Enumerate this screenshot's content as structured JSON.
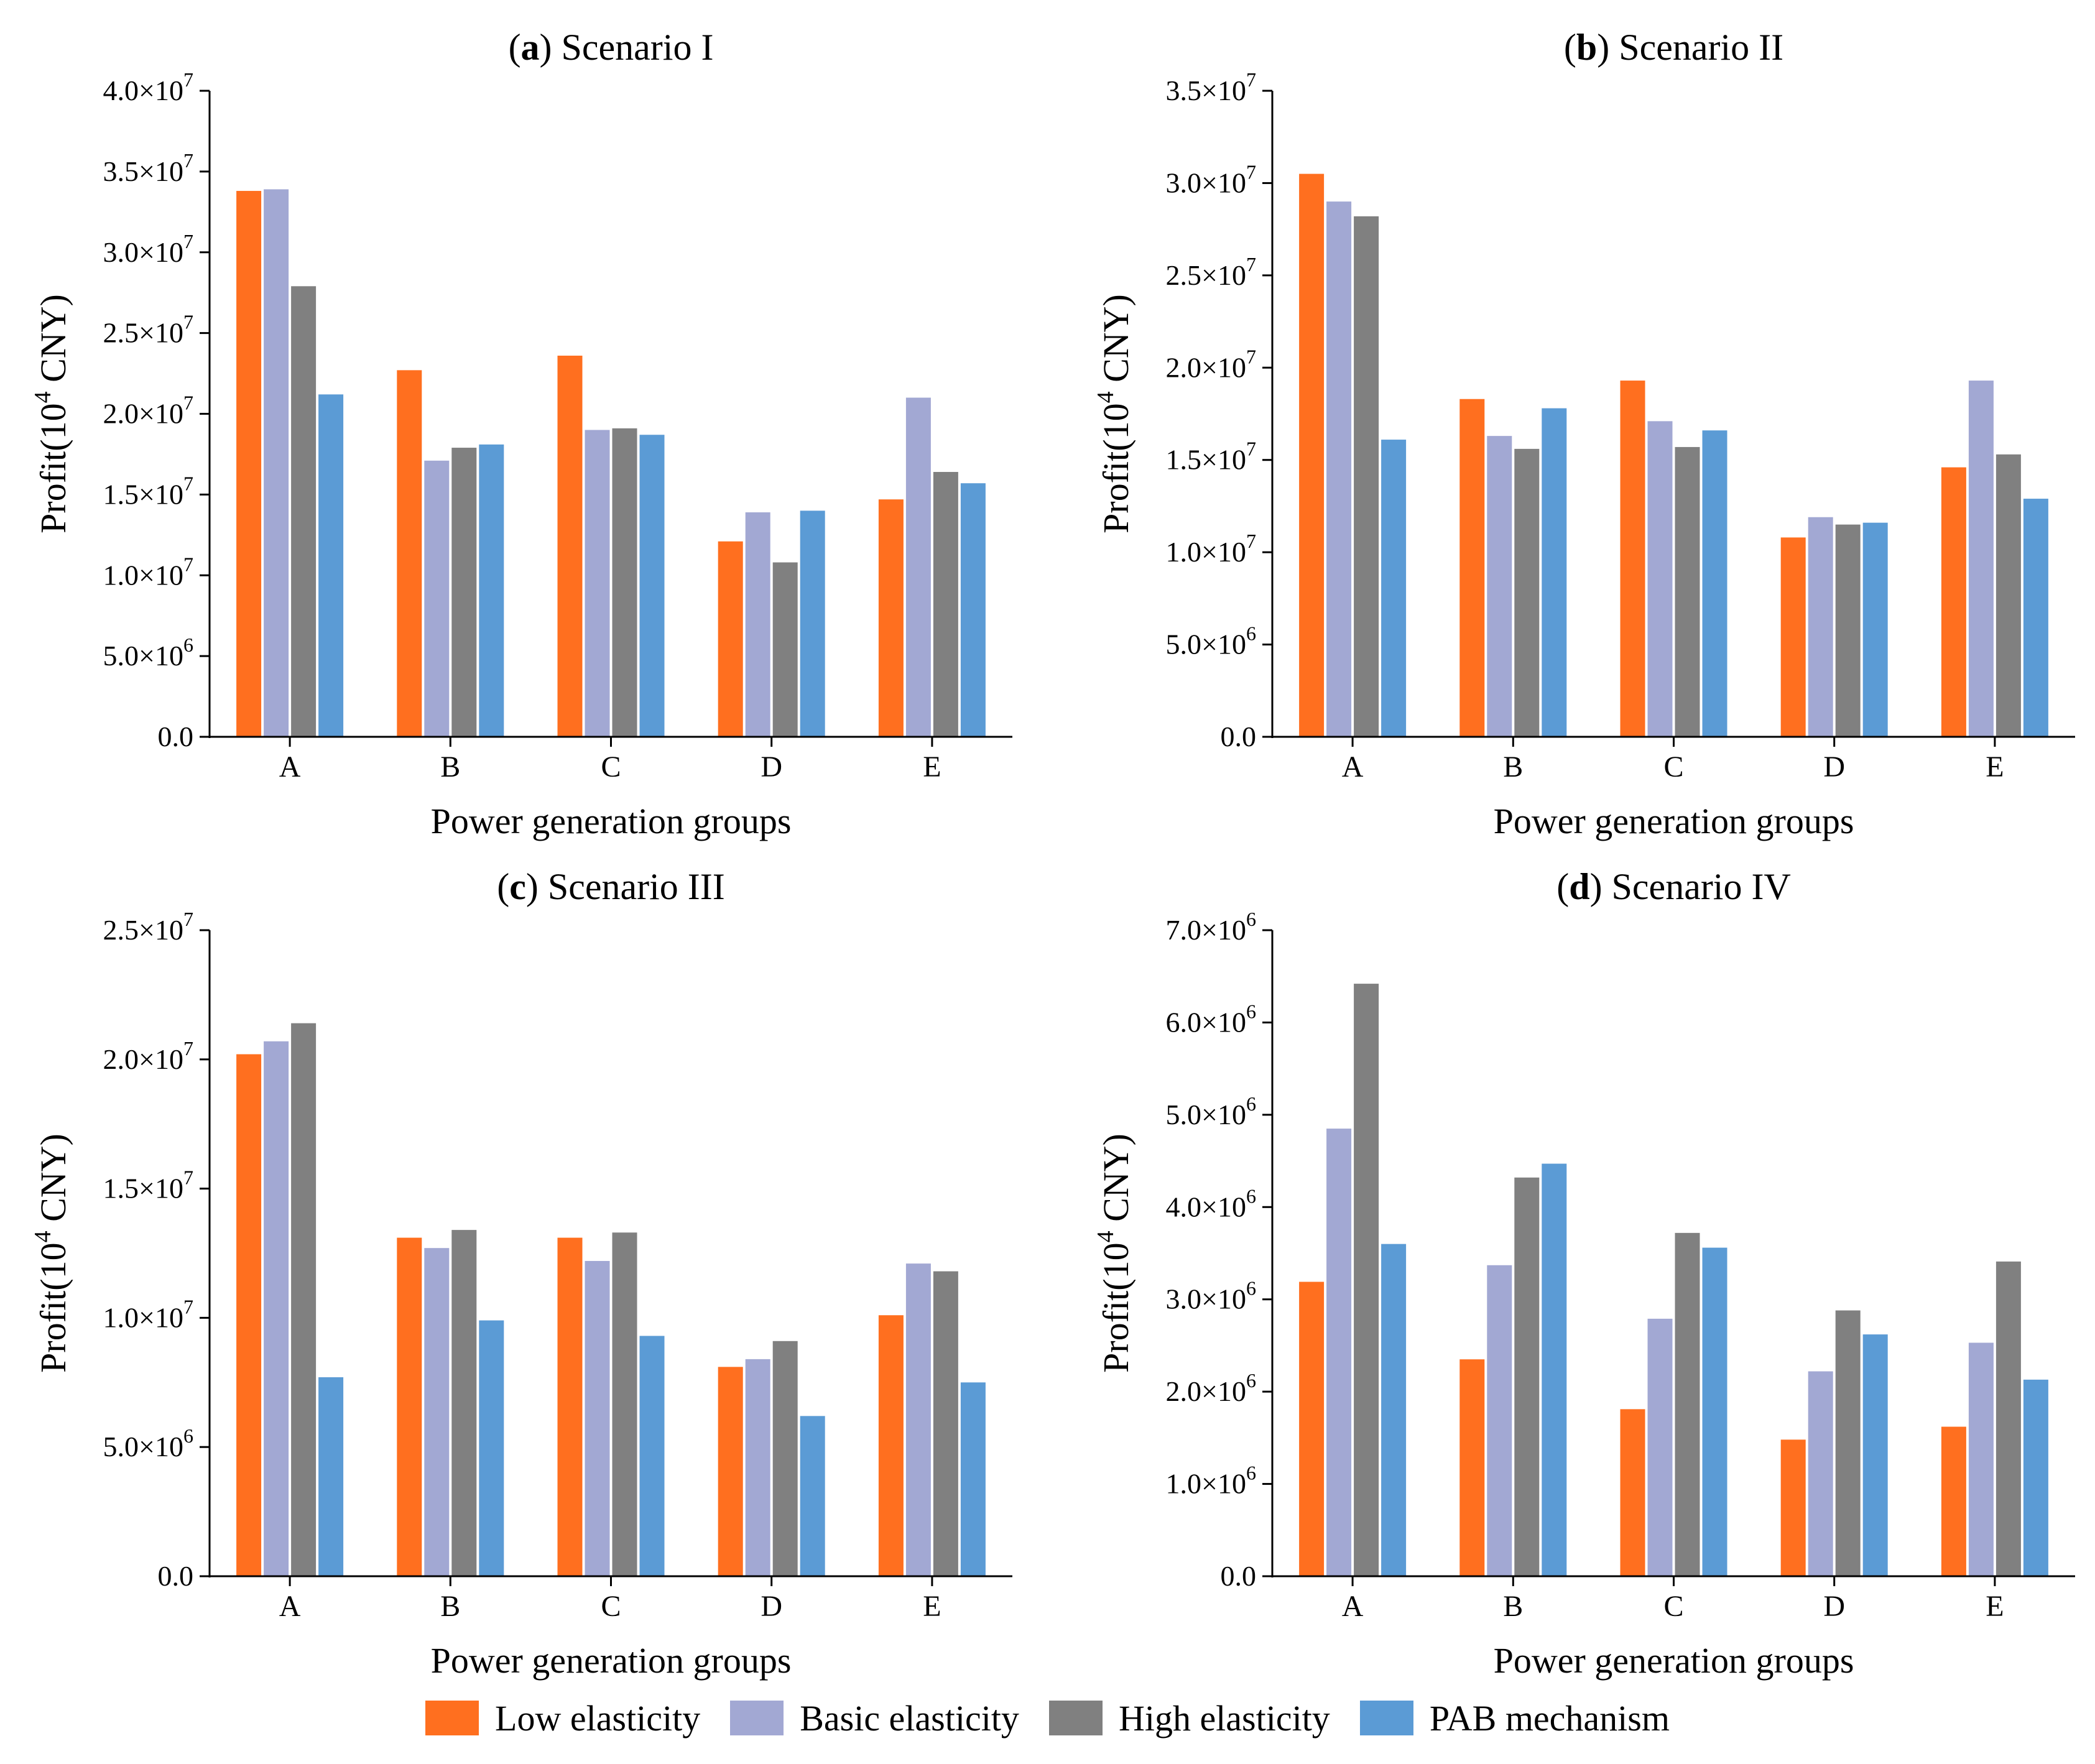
{
  "legend": {
    "series": [
      {
        "name": "Low elasticity",
        "color": "#FF6F1F"
      },
      {
        "name": "Basic elasticity",
        "color": "#A2A8D3"
      },
      {
        "name": "High elasticity",
        "color": "#808080"
      },
      {
        "name": "PAB mechanism",
        "color": "#5B9BD5"
      }
    ]
  },
  "chart_data": [
    {
      "type": "bar",
      "panel_letter": "a",
      "title": "Scenario I",
      "xlabel": "Power generation groups",
      "ylabel": "Profit(10^4 CNY)",
      "categories": [
        "A",
        "B",
        "C",
        "D",
        "E"
      ],
      "ylim": [
        0,
        40000000
      ],
      "yticks": [
        {
          "value": 0,
          "mant": "0.0",
          "exp": ""
        },
        {
          "value": 5000000,
          "mant": "5.0×10",
          "exp": "6"
        },
        {
          "value": 10000000,
          "mant": "1.0×10",
          "exp": "7"
        },
        {
          "value": 15000000,
          "mant": "1.5×10",
          "exp": "7"
        },
        {
          "value": 20000000,
          "mant": "2.0×10",
          "exp": "7"
        },
        {
          "value": 25000000,
          "mant": "2.5×10",
          "exp": "7"
        },
        {
          "value": 30000000,
          "mant": "3.0×10",
          "exp": "7"
        },
        {
          "value": 35000000,
          "mant": "3.5×10",
          "exp": "7"
        },
        {
          "value": 40000000,
          "mant": "4.0×10",
          "exp": "7"
        }
      ],
      "series": [
        {
          "name": "Low elasticity",
          "values": [
            33800000,
            22700000,
            23600000,
            12100000,
            14700000
          ]
        },
        {
          "name": "Basic elasticity",
          "values": [
            33900000,
            17100000,
            19000000,
            13900000,
            21000000
          ]
        },
        {
          "name": "High elasticity",
          "values": [
            27900000,
            17900000,
            19100000,
            10800000,
            16400000
          ]
        },
        {
          "name": "PAB mechanism",
          "values": [
            21200000,
            18100000,
            18700000,
            14000000,
            15700000
          ]
        }
      ]
    },
    {
      "type": "bar",
      "panel_letter": "b",
      "title": "Scenario II",
      "xlabel": "Power generation groups",
      "ylabel": "Profit(10^4 CNY)",
      "categories": [
        "A",
        "B",
        "C",
        "D",
        "E"
      ],
      "ylim": [
        0,
        35000000
      ],
      "yticks": [
        {
          "value": 0,
          "mant": "0.0",
          "exp": ""
        },
        {
          "value": 5000000,
          "mant": "5.0×10",
          "exp": "6"
        },
        {
          "value": 10000000,
          "mant": "1.0×10",
          "exp": "7"
        },
        {
          "value": 15000000,
          "mant": "1.5×10",
          "exp": "7"
        },
        {
          "value": 20000000,
          "mant": "2.0×10",
          "exp": "7"
        },
        {
          "value": 25000000,
          "mant": "2.5×10",
          "exp": "7"
        },
        {
          "value": 30000000,
          "mant": "3.0×10",
          "exp": "7"
        },
        {
          "value": 35000000,
          "mant": "3.5×10",
          "exp": "7"
        }
      ],
      "series": [
        {
          "name": "Low elasticity",
          "values": [
            30500000,
            18300000,
            19300000,
            10800000,
            14600000
          ]
        },
        {
          "name": "Basic elasticity",
          "values": [
            29000000,
            16300000,
            17100000,
            11900000,
            19300000
          ]
        },
        {
          "name": "High elasticity",
          "values": [
            28200000,
            15600000,
            15700000,
            11500000,
            15300000
          ]
        },
        {
          "name": "PAB mechanism",
          "values": [
            16100000,
            17800000,
            16600000,
            11600000,
            12900000
          ]
        }
      ]
    },
    {
      "type": "bar",
      "panel_letter": "c",
      "title": "Scenario III",
      "xlabel": "Power generation groups",
      "ylabel": "Profit(10^4 CNY)",
      "categories": [
        "A",
        "B",
        "C",
        "D",
        "E"
      ],
      "ylim": [
        0,
        25000000
      ],
      "yticks": [
        {
          "value": 0,
          "mant": "0.0",
          "exp": ""
        },
        {
          "value": 5000000,
          "mant": "5.0×10",
          "exp": "6"
        },
        {
          "value": 10000000,
          "mant": "1.0×10",
          "exp": "7"
        },
        {
          "value": 15000000,
          "mant": "1.5×10",
          "exp": "7"
        },
        {
          "value": 20000000,
          "mant": "2.0×10",
          "exp": "7"
        },
        {
          "value": 25000000,
          "mant": "2.5×10",
          "exp": "7"
        }
      ],
      "series": [
        {
          "name": "Low elasticity",
          "values": [
            20200000,
            13100000,
            13100000,
            8100000,
            10100000
          ]
        },
        {
          "name": "Basic elasticity",
          "values": [
            20700000,
            12700000,
            12200000,
            8400000,
            12100000
          ]
        },
        {
          "name": "High elasticity",
          "values": [
            21400000,
            13400000,
            13300000,
            9100000,
            11800000
          ]
        },
        {
          "name": "PAB mechanism",
          "values": [
            7700000,
            9900000,
            9300000,
            6200000,
            7500000
          ]
        }
      ]
    },
    {
      "type": "bar",
      "panel_letter": "d",
      "title": "Scenario IV",
      "xlabel": "Power generation groups",
      "ylabel": "Profit(10^4 CNY)",
      "categories": [
        "A",
        "B",
        "C",
        "D",
        "E"
      ],
      "ylim": [
        0,
        7000000
      ],
      "yticks": [
        {
          "value": 0,
          "mant": "0.0",
          "exp": ""
        },
        {
          "value": 1000000,
          "mant": "1.0×10",
          "exp": "6"
        },
        {
          "value": 2000000,
          "mant": "2.0×10",
          "exp": "6"
        },
        {
          "value": 3000000,
          "mant": "3.0×10",
          "exp": "6"
        },
        {
          "value": 4000000,
          "mant": "4.0×10",
          "exp": "6"
        },
        {
          "value": 5000000,
          "mant": "5.0×10",
          "exp": "6"
        },
        {
          "value": 6000000,
          "mant": "6.0×10",
          "exp": "6"
        },
        {
          "value": 7000000,
          "mant": "7.0×10",
          "exp": "6"
        }
      ],
      "series": [
        {
          "name": "Low elasticity",
          "values": [
            3190000,
            2350000,
            1810000,
            1480000,
            1620000
          ]
        },
        {
          "name": "Basic elasticity",
          "values": [
            4850000,
            3370000,
            2790000,
            2220000,
            2530000
          ]
        },
        {
          "name": "High elasticity",
          "values": [
            6420000,
            4320000,
            3720000,
            2880000,
            3410000
          ]
        },
        {
          "name": "PAB mechanism",
          "values": [
            3600000,
            4470000,
            3560000,
            2620000,
            2130000
          ]
        }
      ]
    }
  ]
}
